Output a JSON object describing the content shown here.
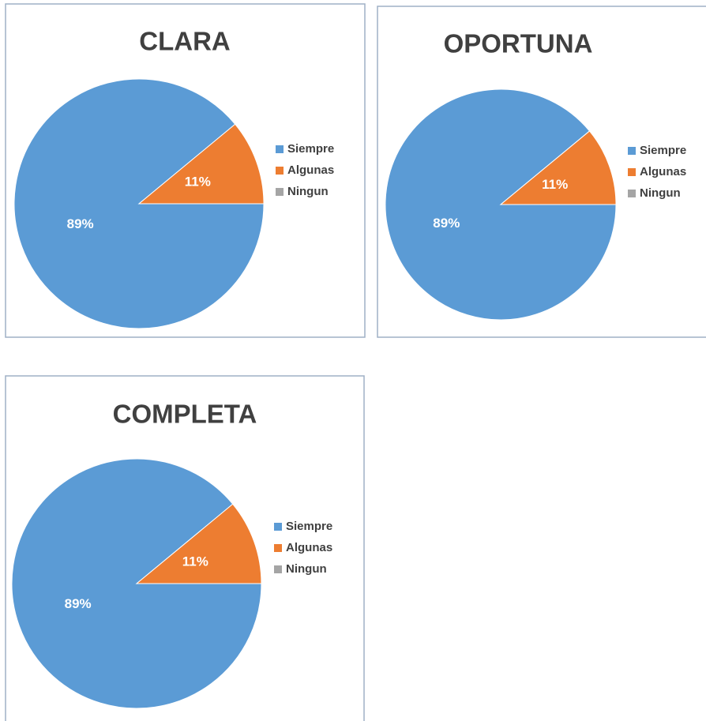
{
  "chart_data": [
    {
      "type": "pie",
      "title": "CLARA",
      "categories": [
        "Siempre",
        "Algunas",
        "Ningun"
      ],
      "values": [
        89,
        11,
        0
      ],
      "value_labels": [
        "89%",
        "11%",
        null
      ],
      "colors": [
        "#5b9bd5",
        "#ed7d31",
        "#a5a5a5"
      ],
      "legend": "right"
    },
    {
      "type": "pie",
      "title": "OPORTUNA",
      "categories": [
        "Siempre",
        "Algunas",
        "Ningun"
      ],
      "values": [
        89,
        11,
        0
      ],
      "value_labels": [
        "89%",
        "11%",
        null
      ],
      "colors": [
        "#5b9bd5",
        "#ed7d31",
        "#a5a5a5"
      ],
      "legend": "right"
    },
    {
      "type": "pie",
      "title": "COMPLETA",
      "categories": [
        "Siempre",
        "Algunas",
        "Ningun"
      ],
      "values": [
        89,
        11,
        0
      ],
      "value_labels": [
        "89%",
        "11%",
        null
      ],
      "colors": [
        "#5b9bd5",
        "#ed7d31",
        "#a5a5a5"
      ],
      "legend": "right"
    }
  ]
}
